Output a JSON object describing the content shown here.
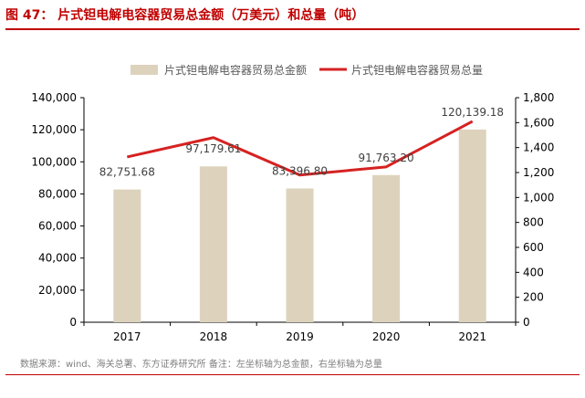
{
  "header": {
    "title": "图 47： 片式钽电解电容器贸易总金额（万美元）和总量（吨）"
  },
  "footer": {
    "source": "数据来源：wind、海关总署、东方证券研究所 备注：左坐标轴为总金额，右坐标轴为总量"
  },
  "colors": {
    "bar": "#ddd3bd",
    "line": "#d62222",
    "accent": "#c00000"
  },
  "chart_data": {
    "type": "bar",
    "title": "",
    "categories": [
      "2017",
      "2018",
      "2019",
      "2020",
      "2021"
    ],
    "series": [
      {
        "name": "片式钽电解电容器贸易总金额",
        "type": "bar",
        "axis": "left",
        "values": [
          82751.68,
          97179.61,
          83396.8,
          91763.2,
          120139.18
        ],
        "value_labels": [
          "82,751.68",
          "97,179.61",
          "83,396.80",
          "91,763.20",
          "120,139.18"
        ]
      },
      {
        "name": "片式钽电解电容器贸易总量",
        "type": "line",
        "axis": "right",
        "values": [
          1325,
          1480,
          1180,
          1245,
          1610
        ]
      }
    ],
    "y_left": {
      "lim": [
        0,
        140000
      ],
      "ticks": [
        0,
        20000,
        40000,
        60000,
        80000,
        100000,
        120000,
        140000
      ],
      "tick_labels": [
        "0",
        "20,000",
        "40,000",
        "60,000",
        "80,000",
        "100,000",
        "120,000",
        "140,000"
      ]
    },
    "y_right": {
      "lim": [
        0,
        1800
      ],
      "ticks": [
        0,
        200,
        400,
        600,
        800,
        1000,
        1200,
        1400,
        1600,
        1800
      ],
      "tick_labels": [
        "0",
        "200",
        "400",
        "600",
        "800",
        "1,000",
        "1,200",
        "1,400",
        "1,600",
        "1,800"
      ]
    },
    "grid": false,
    "legend": "top"
  }
}
